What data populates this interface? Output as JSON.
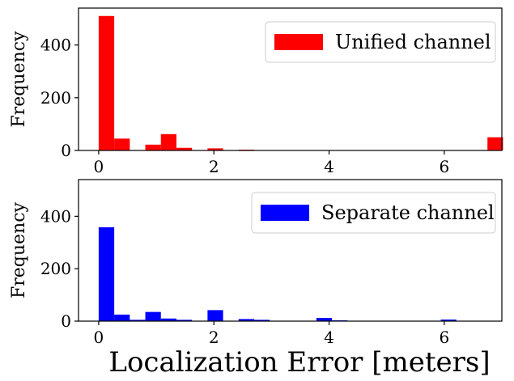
{
  "chart_data": [
    {
      "type": "bar",
      "histogram": true,
      "color": "#ff0000",
      "legend": "Unified channel",
      "legend_position": "top-right",
      "ylabel": "Frequency",
      "xlabel": "",
      "xlim": [
        -0.35,
        7.0
      ],
      "ylim": [
        0,
        540
      ],
      "xticks": [
        "0",
        "2",
        "4",
        "6"
      ],
      "yticks": [
        "0",
        "200",
        "400"
      ],
      "bin_width": 0.27,
      "bins": [
        {
          "x": 0.0,
          "value": 510
        },
        {
          "x": 0.27,
          "value": 45
        },
        {
          "x": 0.54,
          "value": 0
        },
        {
          "x": 0.81,
          "value": 22
        },
        {
          "x": 1.08,
          "value": 62
        },
        {
          "x": 1.35,
          "value": 10
        },
        {
          "x": 1.62,
          "value": 0
        },
        {
          "x": 1.89,
          "value": 8
        },
        {
          "x": 2.16,
          "value": 0
        },
        {
          "x": 2.43,
          "value": 3
        },
        {
          "x": 6.75,
          "value": 50
        }
      ]
    },
    {
      "type": "bar",
      "histogram": true,
      "color": "#0000ff",
      "legend": "Separate channel",
      "legend_position": "top-right",
      "ylabel": "Frequency",
      "xlabel": "Localization Error [meters]",
      "xlim": [
        -0.35,
        7.0
      ],
      "ylim": [
        0,
        540
      ],
      "xticks": [
        "0",
        "2",
        "4",
        "6"
      ],
      "yticks": [
        "0",
        "200",
        "400"
      ],
      "bin_width": 0.27,
      "bins": [
        {
          "x": 0.0,
          "value": 358
        },
        {
          "x": 0.27,
          "value": 25
        },
        {
          "x": 0.54,
          "value": 5
        },
        {
          "x": 0.81,
          "value": 35
        },
        {
          "x": 1.08,
          "value": 10
        },
        {
          "x": 1.35,
          "value": 5
        },
        {
          "x": 1.62,
          "value": 0
        },
        {
          "x": 1.89,
          "value": 42
        },
        {
          "x": 2.16,
          "value": 0
        },
        {
          "x": 2.43,
          "value": 8
        },
        {
          "x": 2.7,
          "value": 5
        },
        {
          "x": 3.78,
          "value": 12
        },
        {
          "x": 4.05,
          "value": 3
        },
        {
          "x": 5.94,
          "value": 6
        }
      ]
    }
  ]
}
